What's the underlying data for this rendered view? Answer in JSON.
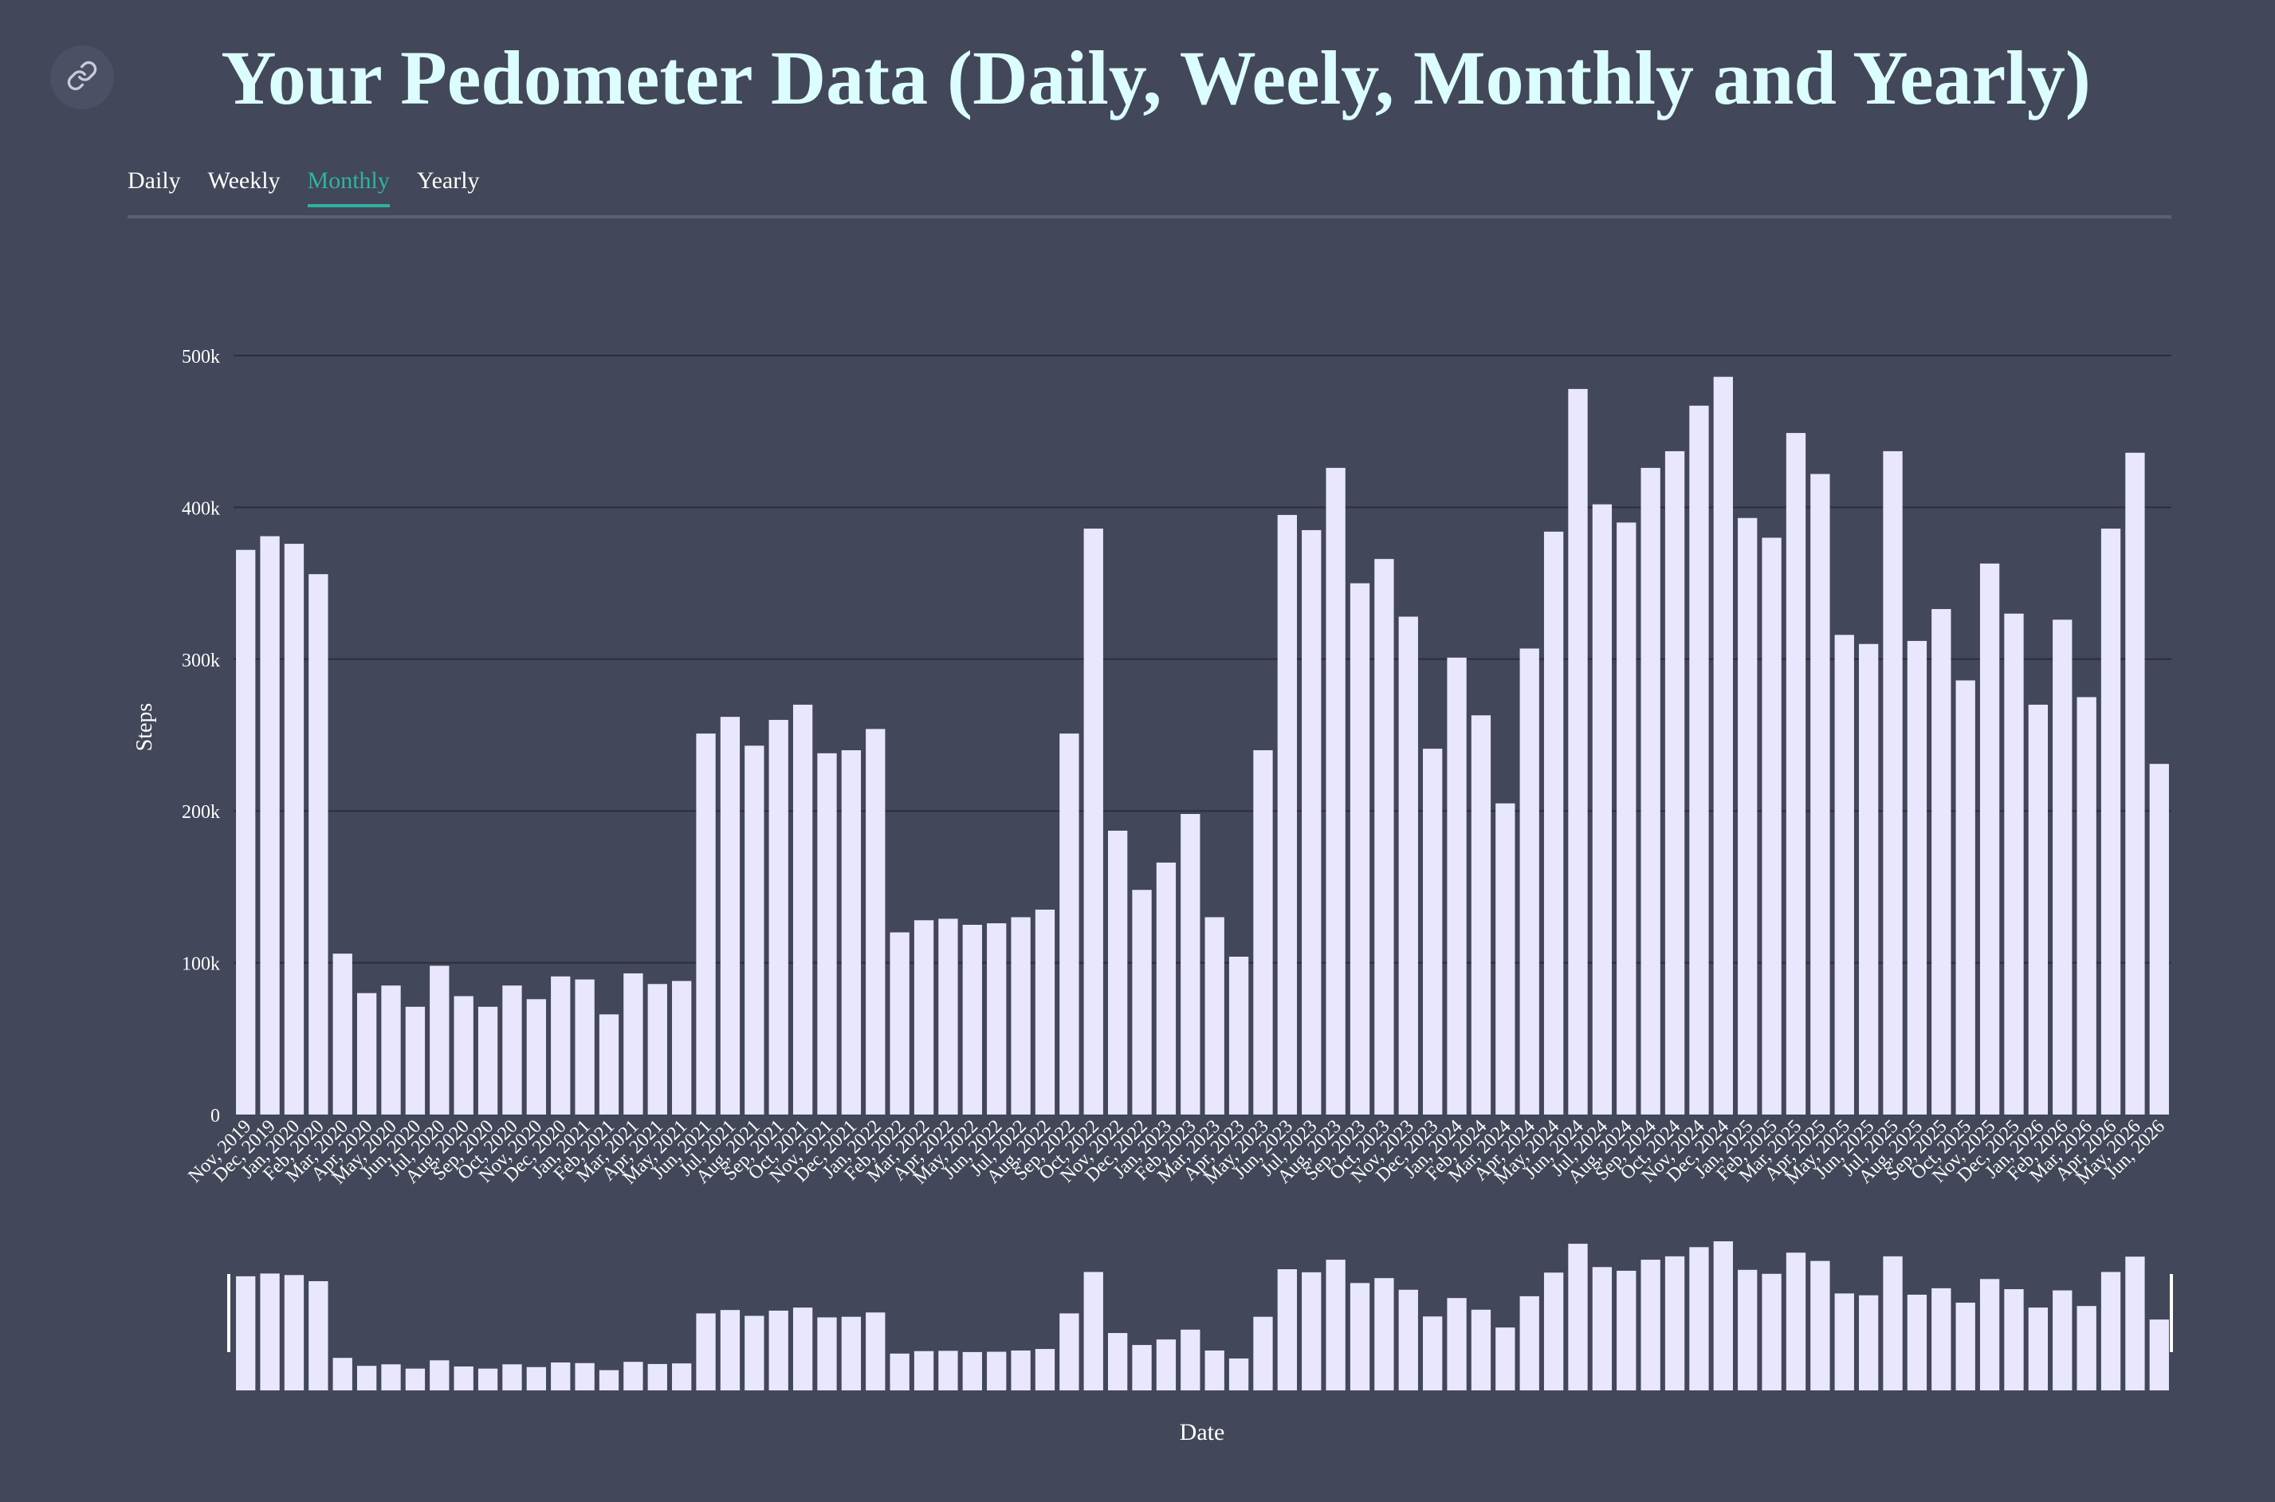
{
  "page": {
    "title": "Your Pedometer Data (Daily, Weely, Monthly and Yearly)",
    "link_icon": "link-icon"
  },
  "tabs": [
    {
      "label": "Daily",
      "active": false
    },
    {
      "label": "Weekly",
      "active": false
    },
    {
      "label": "Monthly",
      "active": true
    },
    {
      "label": "Yearly",
      "active": false
    }
  ],
  "colors": {
    "background": "#424759",
    "bar": "#e9e7fd",
    "accent": "#2fb3a0",
    "title": "#dcfdfd"
  },
  "chart_data": {
    "type": "bar",
    "xlabel": "Date",
    "ylabel": "Steps",
    "ylim": [
      0,
      500000
    ],
    "yticks": [
      0,
      100000,
      200000,
      300000,
      400000,
      500000
    ],
    "ytick_labels": [
      "0",
      "100k",
      "200k",
      "300k",
      "400k",
      "500k"
    ],
    "grid": true,
    "brush": true,
    "categories": [
      "Nov, 2019",
      "Dec, 2019",
      "Jan, 2020",
      "Feb, 2020",
      "Mar, 2020",
      "Apr, 2020",
      "May, 2020",
      "Jun, 2020",
      "Jul, 2020",
      "Aug, 2020",
      "Sep, 2020",
      "Oct, 2020",
      "Nov, 2020",
      "Dec, 2020",
      "Jan, 2021",
      "Feb, 2021",
      "Mar, 2021",
      "Apr, 2021",
      "May, 2021",
      "Jun, 2021",
      "Jul, 2021",
      "Aug, 2021",
      "Sep, 2021",
      "Oct, 2021",
      "Nov, 2021",
      "Dec, 2021",
      "Jan, 2022",
      "Feb, 2022",
      "Mar, 2022",
      "Apr, 2022",
      "May, 2022",
      "Jun, 2022",
      "Jul, 2022",
      "Aug, 2022",
      "Sep, 2022",
      "Oct, 2022",
      "Nov, 2022",
      "Dec, 2022",
      "Jan, 2023",
      "Feb, 2023",
      "Mar, 2023",
      "Apr, 2023",
      "May, 2023",
      "Jun, 2023",
      "Jul, 2023",
      "Aug, 2023",
      "Sep, 2023",
      "Oct, 2023",
      "Nov, 2023",
      "Dec, 2023",
      "Jan, 2024",
      "Feb, 2024",
      "Mar, 2024",
      "Apr, 2024",
      "May, 2024",
      "Jun, 2024",
      "Jul, 2024",
      "Aug, 2024",
      "Sep, 2024",
      "Oct, 2024",
      "Nov, 2024",
      "Dec, 2024",
      "Jan, 2025",
      "Feb, 2025",
      "Mar, 2025",
      "Apr, 2025",
      "May, 2025",
      "Jun, 2025",
      "Jul, 2025",
      "Aug, 2025",
      "Sep, 2025",
      "Oct, 2025",
      "Nov, 2025",
      "Dec, 2025",
      "Jan, 2026",
      "Feb, 2026",
      "Mar, 2026",
      "Apr, 2026",
      "May, 2026",
      "Jun, 2026"
    ],
    "values": [
      372000,
      381000,
      376000,
      356000,
      106000,
      80000,
      85000,
      71000,
      98000,
      78000,
      71000,
      85000,
      76000,
      91000,
      89000,
      66000,
      93000,
      86000,
      88000,
      251000,
      262000,
      243000,
      260000,
      270000,
      238000,
      240000,
      254000,
      120000,
      128000,
      129000,
      125000,
      126000,
      130000,
      135000,
      251000,
      386000,
      187000,
      148000,
      166000,
      198000,
      130000,
      104000,
      240000,
      395000,
      385000,
      426000,
      350000,
      366000,
      328000,
      241000,
      301000,
      263000,
      205000,
      307000,
      384000,
      478000,
      402000,
      390000,
      426000,
      437000,
      467000,
      486000,
      393000,
      380000,
      449000,
      422000,
      316000,
      310000,
      437000,
      312000,
      333000,
      286000,
      363000,
      330000,
      270000,
      326000,
      275000,
      386000,
      436000,
      231000
    ]
  }
}
